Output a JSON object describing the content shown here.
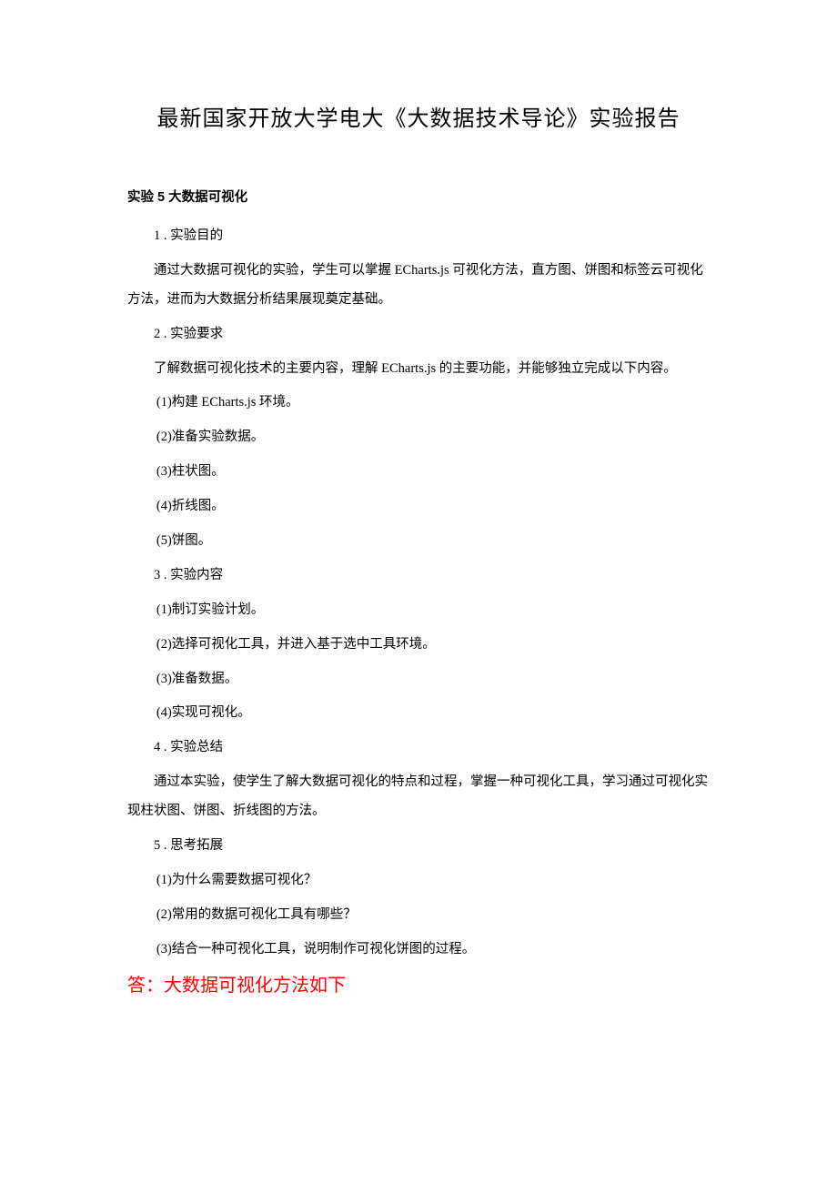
{
  "title": "最新国家开放大学电大《大数据技术导论》实验报告",
  "subheading": "实验 5 大数据可视化",
  "sections": {
    "s1": {
      "num": "1 . 实验目的",
      "body": "通过大数据可视化的实验，学生可以掌握 ECharts.js 可视化方法，直方图、饼图和标签云可视化方法，进而为大数据分析结果展现奠定基础。"
    },
    "s2": {
      "num": "2 . 实验要求",
      "intro": "了解数据可视化技术的主要内容，理解 ECharts.js 的主要功能，并能够独立完成以下内容。",
      "items": [
        "(1)构建 ECharts.js 环境。",
        "(2)准备实验数据。",
        "(3)柱状图。",
        "(4)折线图。",
        "(5)饼图。"
      ]
    },
    "s3": {
      "num": "3 . 实验内容",
      "items": [
        "(1)制订实验计划。",
        "(2)选择可视化工具，并进入基于选中工具环境。",
        "(3)准备数据。",
        "(4)实现可视化。"
      ]
    },
    "s4": {
      "num": "4 . 实验总结",
      "body": "通过本实验，使学生了解大数据可视化的特点和过程，掌握一种可视化工具，学习通过可视化实现柱状图、饼图、折线图的方法。"
    },
    "s5": {
      "num": "5 . 思考拓展",
      "items": [
        "(1)为什么需要数据可视化？",
        "(2)常用的数据可视化工具有哪些？",
        "(3)结合一种可视化工具，说明制作可视化饼图的过程。"
      ]
    }
  },
  "answer": "答：大数据可视化方法如下",
  "colors": {
    "text": "#000000",
    "answer": "#ff0000",
    "background": "#ffffff"
  }
}
